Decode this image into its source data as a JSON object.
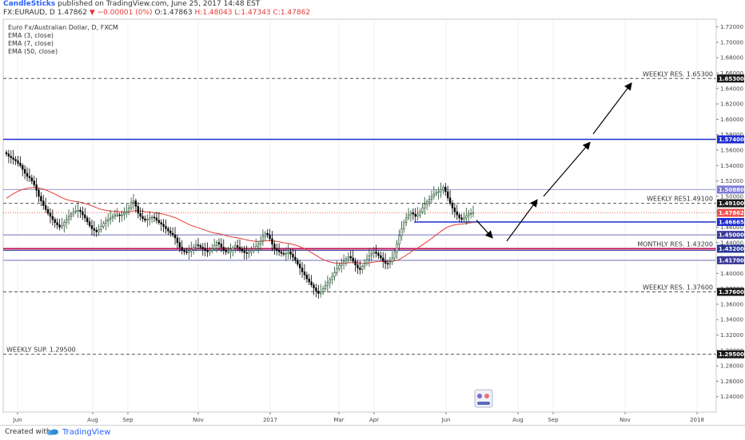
{
  "header": {
    "author": "CandleSticks",
    "published": "published on TradingView.com, June 25, 2017 14:48 EST",
    "symbol": "FX:EURAUD, D",
    "last": "1.47862",
    "change": "▼ −0.00001 (0%)",
    "open": "O:1.47863",
    "high": "H:1.48043",
    "low": "L:1.47343",
    "close": "C:1.47862"
  },
  "footer": {
    "created_with": "Created with",
    "brand": "TradingView"
  },
  "colors": {
    "up_candle": "#1f4f2a",
    "down_candle": "#000000",
    "ema50": "#e53935",
    "blue_level": "#1e2dcf",
    "magenta_level": "#c2185b",
    "arrow": "#000000"
  },
  "chart_data": {
    "type": "candlestick",
    "title": "Euro Fx/Australian Dollar, D, FXCM",
    "indicators": [
      "EMA (3, close)",
      "EMA (7, close)",
      "EMA (50, close)"
    ],
    "ylim": [
      1.22,
      1.73
    ],
    "y_ticks": [
      "1.72000",
      "1.70000",
      "1.68000",
      "1.66000",
      "1.64000",
      "1.62000",
      "1.60000",
      "1.58000",
      "1.56000",
      "1.54000",
      "1.52000",
      "1.50000",
      "1.48000",
      "1.46000",
      "1.44000",
      "1.42000",
      "1.40000",
      "1.38000",
      "1.36000",
      "1.34000",
      "1.32000",
      "1.30000",
      "1.28000",
      "1.26000",
      "1.24000"
    ],
    "x_ticks": [
      "Jun",
      "Aug",
      "Sep",
      "Nov",
      "2017",
      "Mar",
      "Apr",
      "Jun",
      "Aug",
      "Sep",
      "Nov",
      "2018"
    ],
    "price_marks": [
      {
        "value": 1.653,
        "label": "1.65300",
        "style": "dark"
      },
      {
        "value": 1.574,
        "label": "1.57400",
        "style": "blue"
      },
      {
        "value": 1.5088,
        "label": "1.50880",
        "style": "lavender"
      },
      {
        "value": 1.491,
        "label": "1.49100",
        "style": "dark"
      },
      {
        "value": 1.4786,
        "label": "1.47862",
        "style": "red"
      },
      {
        "value": 1.4667,
        "label": "1.46665",
        "style": "blue"
      },
      {
        "value": 1.45,
        "label": "1.45000",
        "style": "purple"
      },
      {
        "value": 1.432,
        "label": "1.43200",
        "style": "magenta"
      },
      {
        "value": 1.417,
        "label": "1.41700",
        "style": "purple"
      },
      {
        "value": 1.376,
        "label": "1.37600",
        "style": "dark"
      },
      {
        "value": 1.295,
        "label": "1.29500",
        "style": "dark"
      }
    ],
    "level_labels": [
      {
        "text": "WEEKLY RES. 1.65300",
        "value": 1.653,
        "align": "right"
      },
      {
        "text": "WEEKLY RES1.49100",
        "value": 1.491,
        "align": "right"
      },
      {
        "text": "MONTHLY RES. 1.43200",
        "value": 1.432,
        "align": "right"
      },
      {
        "text": "WEEKLY RES. 1.37600",
        "value": 1.376,
        "align": "right"
      },
      {
        "text": "WEEKLY SUP. 1.29500",
        "value": 1.295,
        "align": "left"
      }
    ],
    "path_points": [
      1.4955,
      1.442,
      1.57,
      1.647
    ],
    "closes": [
      1.555,
      1.552,
      1.55,
      1.548,
      1.546,
      1.543,
      1.54,
      1.535,
      1.53,
      1.526,
      1.524,
      1.52,
      1.515,
      1.508,
      1.5,
      1.494,
      1.488,
      1.483,
      1.478,
      1.474,
      1.47,
      1.466,
      1.463,
      1.46,
      1.462,
      1.466,
      1.47,
      1.474,
      1.477,
      1.48,
      1.481,
      1.482,
      1.48,
      1.476,
      1.472,
      1.467,
      1.462,
      1.458,
      1.456,
      1.454,
      1.457,
      1.461,
      1.465,
      1.468,
      1.47,
      1.472,
      1.474,
      1.476,
      1.476,
      1.475,
      1.476,
      1.478,
      1.48,
      1.485,
      1.492,
      1.494,
      1.487,
      1.478,
      1.474,
      1.471,
      1.469,
      1.47,
      1.472,
      1.473,
      1.472,
      1.469,
      1.466,
      1.464,
      1.461,
      1.458,
      1.455,
      1.452,
      1.45,
      1.446,
      1.44,
      1.434,
      1.43,
      1.428,
      1.427,
      1.429,
      1.431,
      1.434,
      1.437,
      1.436,
      1.434,
      1.432,
      1.43,
      1.428,
      1.43,
      1.432,
      1.436,
      1.44,
      1.438,
      1.434,
      1.43,
      1.428,
      1.428,
      1.43,
      1.433,
      1.436,
      1.434,
      1.431,
      1.429,
      1.427,
      1.426,
      1.428,
      1.43,
      1.432,
      1.435,
      1.438,
      1.442,
      1.448,
      1.452,
      1.45,
      1.445,
      1.438,
      1.432,
      1.43,
      1.428,
      1.426,
      1.425,
      1.426,
      1.428,
      1.425,
      1.421,
      1.417,
      1.412,
      1.407,
      1.402,
      1.398,
      1.393,
      1.389,
      1.385,
      1.381,
      1.377,
      1.374,
      1.376,
      1.38,
      1.384,
      1.388,
      1.392,
      1.396,
      1.401,
      1.406,
      1.41,
      1.413,
      1.416,
      1.419,
      1.422,
      1.42,
      1.416,
      1.411,
      1.407,
      1.405,
      1.409,
      1.413,
      1.418,
      1.423,
      1.426,
      1.428,
      1.426,
      1.423,
      1.42,
      1.416,
      1.413,
      1.412,
      1.415,
      1.42,
      1.428,
      1.438,
      1.449,
      1.458,
      1.466,
      1.472,
      1.476,
      1.479,
      1.477,
      1.474,
      1.476,
      1.48,
      1.485,
      1.49,
      1.493,
      1.496,
      1.5,
      1.503,
      1.505,
      1.506,
      1.509,
      1.512,
      1.506,
      1.498,
      1.491,
      1.485,
      1.48,
      1.476,
      1.472,
      1.47,
      1.472,
      1.475,
      1.478,
      1.478,
      1.479
    ]
  }
}
